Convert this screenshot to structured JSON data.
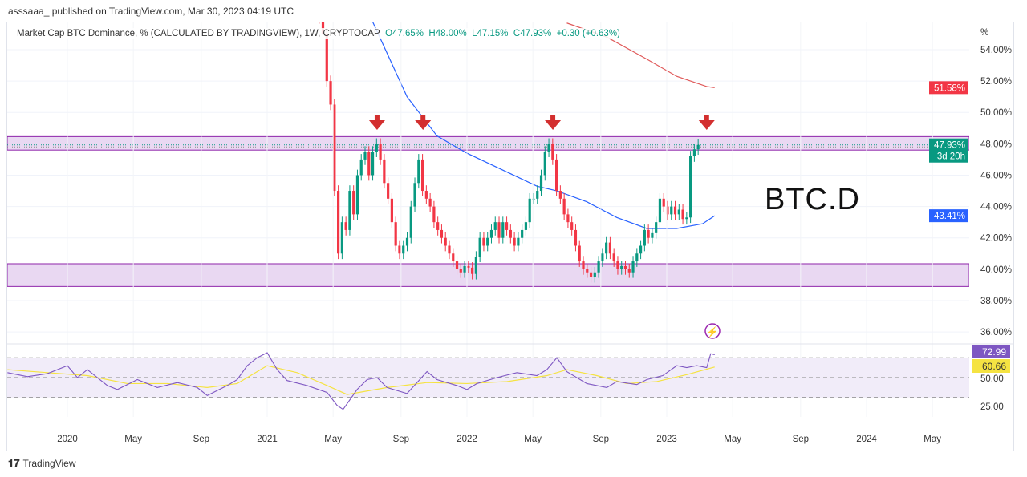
{
  "header": {
    "published": "asssaaa_ published on TradingView.com, Mar 30, 2023 04:19 UTC"
  },
  "legend": {
    "symbol": "Market Cap BTC Dominance, % (CALCULATED BY TRADINGVIEW), 1W, CRYPTOCAP",
    "open": "O47.65%",
    "high": "H48.00%",
    "low": "L47.15%",
    "close": "C47.93%",
    "change": "+0.30 (+0.63%)"
  },
  "annotation": "BTC.D",
  "footer": {
    "brand": "TradingView"
  },
  "chart_data": {
    "type": "candlestick",
    "interval": "1W",
    "unit_label": "%",
    "ylim": [
      35.5,
      55.5
    ],
    "y_ticks": [
      "54.00%",
      "52.00%",
      "50.00%",
      "48.00%",
      "46.00%",
      "44.00%",
      "42.00%",
      "40.00%",
      "38.00%",
      "36.00%"
    ],
    "y_tick_values": [
      54,
      52,
      50,
      48,
      46,
      44,
      42,
      40,
      38,
      36
    ],
    "x_ticks": [
      "2020",
      "May",
      "Sep",
      "2021",
      "May",
      "Sep",
      "2022",
      "May",
      "Sep",
      "2023",
      "May",
      "Sep",
      "2024",
      "May"
    ],
    "x_tick_values": [
      2020,
      2020.33,
      2020.67,
      2021,
      2021.33,
      2021.67,
      2022,
      2022.33,
      2022.67,
      2023,
      2023.33,
      2023.67,
      2024,
      2024.33
    ],
    "candle_start": 2021.26,
    "closes": [
      56,
      55,
      52,
      50.5,
      45,
      41,
      43,
      42.5,
      45,
      43.5,
      46,
      47,
      47.5,
      46,
      47.5,
      48,
      47,
      45.5,
      44.5,
      43,
      41.5,
      41,
      41.5,
      42,
      44,
      45.5,
      47,
      45,
      44.5,
      44,
      43,
      42.5,
      42,
      41.5,
      41,
      40.5,
      40,
      39.8,
      40.2,
      40.1,
      39.7,
      40.8,
      42,
      41.5,
      42,
      42.5,
      43,
      42,
      43,
      42.5,
      42,
      41.5,
      42,
      42.5,
      43,
      44.5,
      44.5,
      45,
      46,
      47.5,
      48,
      47,
      45,
      44.5,
      43.5,
      43,
      42.5,
      41.5,
      40.5,
      40,
      39.8,
      39.5,
      39.8,
      40.5,
      41,
      41.7,
      41,
      40.5,
      40,
      40.2,
      40,
      39.8,
      40.5,
      41,
      41.5,
      42.5,
      42,
      42.3,
      43,
      44.5,
      44,
      43.5,
      44,
      43.5,
      43.8,
      43.2,
      43.3,
      47.2,
      47.65,
      47.93
    ],
    "last_candle": {
      "open": 47.65,
      "high": 48.0,
      "low": 47.15,
      "close": 47.93,
      "change": 0.3,
      "change_pct": 0.63
    },
    "series": [
      {
        "kind": "ma",
        "color": "#2962ff",
        "label_value": "43.41%",
        "points": [
          [
            2021.52,
            56
          ],
          [
            2021.7,
            51
          ],
          [
            2021.85,
            48.5
          ],
          [
            2022.0,
            47.4
          ],
          [
            2022.2,
            46.2
          ],
          [
            2022.35,
            45.3
          ],
          [
            2022.45,
            45
          ],
          [
            2022.6,
            44.3
          ],
          [
            2022.75,
            43.3
          ],
          [
            2022.9,
            42.6
          ],
          [
            2023.05,
            42.6
          ],
          [
            2023.18,
            42.9
          ],
          [
            2023.24,
            43.41
          ]
        ]
      },
      {
        "kind": "ma",
        "color": "#e05a5a",
        "label_value": "51.58%",
        "points": [
          [
            2022.5,
            55.7
          ],
          [
            2022.7,
            54.8
          ],
          [
            2022.9,
            53.4
          ],
          [
            2023.05,
            52.3
          ],
          [
            2023.2,
            51.65
          ],
          [
            2023.24,
            51.58
          ]
        ]
      }
    ],
    "zones": [
      {
        "from": 47.6,
        "to": 48.46,
        "color": "#9c27b0"
      },
      {
        "from": 38.9,
        "to": 40.35,
        "color": "#9c27b0"
      }
    ],
    "arrows": [
      2021.55,
      2021.78,
      2022.43,
      2023.2
    ],
    "price_labels": [
      {
        "text": "51.58%",
        "color": "#f23645"
      },
      {
        "text": "47.93%",
        "sub": "3d 20h",
        "color": "#089981"
      },
      {
        "text": "43.41%",
        "color": "#2962ff"
      }
    ],
    "rsi": {
      "levels": [
        "50.00",
        "25.00"
      ],
      "level_values": [
        50,
        25
      ],
      "upper": 70,
      "lower": 30,
      "rsi_label": "72.99",
      "ma_label": "60.66",
      "rsi_color": "#7e57c2",
      "ma_color": "#f5e342",
      "points": [
        [
          2019.7,
          55
        ],
        [
          2019.8,
          51
        ],
        [
          2019.9,
          54
        ],
        [
          2020.0,
          62
        ],
        [
          2020.05,
          50
        ],
        [
          2020.1,
          58
        ],
        [
          2020.2,
          42
        ],
        [
          2020.25,
          38
        ],
        [
          2020.35,
          48
        ],
        [
          2020.45,
          40
        ],
        [
          2020.55,
          45
        ],
        [
          2020.65,
          40
        ],
        [
          2020.7,
          32
        ],
        [
          2020.8,
          42
        ],
        [
          2020.85,
          48
        ],
        [
          2020.9,
          62
        ],
        [
          2020.95,
          70
        ],
        [
          2021.0,
          75
        ],
        [
          2021.05,
          58
        ],
        [
          2021.1,
          47
        ],
        [
          2021.2,
          42
        ],
        [
          2021.3,
          35
        ],
        [
          2021.35,
          22
        ],
        [
          2021.38,
          18
        ],
        [
          2021.45,
          38
        ],
        [
          2021.5,
          48
        ],
        [
          2021.55,
          50
        ],
        [
          2021.6,
          40
        ],
        [
          2021.7,
          34
        ],
        [
          2021.75,
          45
        ],
        [
          2021.8,
          56
        ],
        [
          2021.85,
          48
        ],
        [
          2021.95,
          42
        ],
        [
          2022.0,
          38
        ],
        [
          2022.05,
          44
        ],
        [
          2022.15,
          50
        ],
        [
          2022.25,
          55
        ],
        [
          2022.35,
          52
        ],
        [
          2022.4,
          58
        ],
        [
          2022.45,
          70
        ],
        [
          2022.5,
          56
        ],
        [
          2022.6,
          44
        ],
        [
          2022.7,
          40
        ],
        [
          2022.75,
          46
        ],
        [
          2022.85,
          43
        ],
        [
          2022.9,
          48
        ],
        [
          2022.98,
          52
        ],
        [
          2023.05,
          62
        ],
        [
          2023.1,
          60
        ],
        [
          2023.15,
          62
        ],
        [
          2023.2,
          60
        ],
        [
          2023.22,
          74
        ],
        [
          2023.24,
          72.99
        ]
      ],
      "ma_points": [
        [
          2019.7,
          58
        ],
        [
          2019.9,
          55
        ],
        [
          2020.1,
          52
        ],
        [
          2020.3,
          44
        ],
        [
          2020.5,
          44
        ],
        [
          2020.7,
          40
        ],
        [
          2020.85,
          44
        ],
        [
          2021.0,
          62
        ],
        [
          2021.15,
          55
        ],
        [
          2021.3,
          42
        ],
        [
          2021.4,
          33
        ],
        [
          2021.6,
          40
        ],
        [
          2021.8,
          45
        ],
        [
          2022.0,
          44
        ],
        [
          2022.2,
          46
        ],
        [
          2022.4,
          52
        ],
        [
          2022.5,
          58
        ],
        [
          2022.65,
          52
        ],
        [
          2022.8,
          44
        ],
        [
          2022.95,
          46
        ],
        [
          2023.1,
          53
        ],
        [
          2023.24,
          60.66
        ]
      ]
    }
  }
}
